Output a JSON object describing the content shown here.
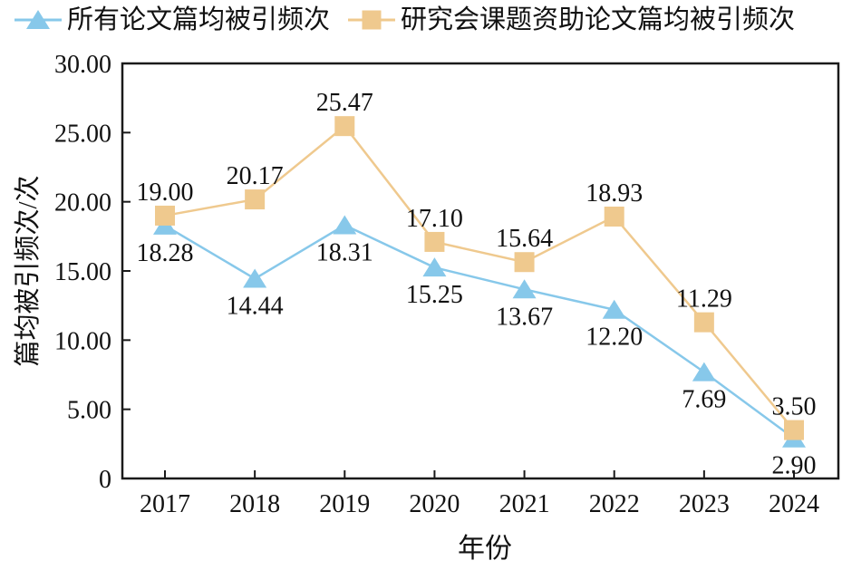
{
  "legend": {
    "items": [
      {
        "label": "所有论文篇均被引频次",
        "marker": "triangle",
        "color": "#87C8EA"
      },
      {
        "label": "研究会课题资助论文篇均被引频次",
        "marker": "square",
        "color": "#EFC98E"
      }
    ]
  },
  "chart_data": {
    "type": "line",
    "x": [
      "2017",
      "2018",
      "2019",
      "2020",
      "2021",
      "2022",
      "2023",
      "2024"
    ],
    "series": [
      {
        "name": "所有论文篇均被引频次",
        "marker": "triangle",
        "color": "#87C8EA",
        "values": [
          18.28,
          14.44,
          18.31,
          15.25,
          13.67,
          12.2,
          7.69,
          2.9
        ],
        "labels": [
          "18.28",
          "14.44",
          "18.31",
          "15.25",
          "13.67",
          "12.20",
          "7.69",
          "2.90"
        ],
        "label_position": "below"
      },
      {
        "name": "研究会课题资助论文篇均被引频次",
        "marker": "square",
        "color": "#EFC98E",
        "values": [
          19.0,
          20.17,
          25.47,
          17.1,
          15.64,
          18.93,
          11.29,
          3.5
        ],
        "labels": [
          "19.00",
          "20.17",
          "25.47",
          "17.10",
          "15.64",
          "18.93",
          "11.29",
          "3.50"
        ],
        "label_position": "above"
      }
    ],
    "xlabel": "年份",
    "ylabel": "篇均被引频次/次",
    "ylim": [
      0,
      30
    ],
    "yticks": [
      30,
      25,
      20,
      15,
      10,
      5,
      0
    ],
    "ytick_labels": [
      "30.00",
      "25.00",
      "20.00",
      "15.00",
      "10.00",
      "5.00",
      "0"
    ],
    "grid": false,
    "legend_position": "top",
    "frame_color": "#1a1a1a",
    "text_color": "#111111"
  }
}
